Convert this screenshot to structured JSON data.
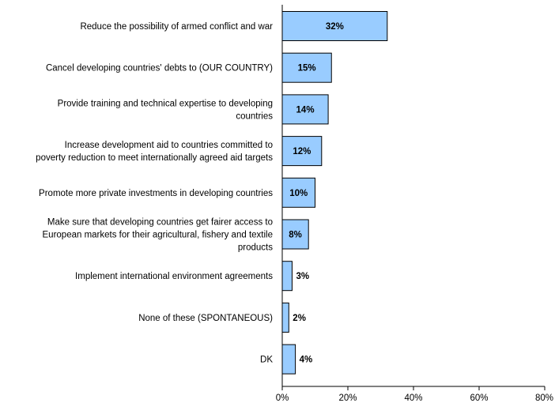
{
  "chart_data": {
    "type": "bar",
    "orientation": "horizontal",
    "categories": [
      "Reduce the possibility of armed conflict and war",
      "Cancel developing countries' debts to (OUR COUNTRY)",
      "Provide training and technical expertise to developing countries",
      "Increase development aid to countries committed to poverty reduction to meet internationally agreed aid targets",
      "Promote more private investments in developing countries",
      "Make sure that developing countries get fairer access to European markets for their agricultural, fishery and textile products",
      "Implement international environment agreements",
      "None of these (SPONTANEOUS)",
      "DK"
    ],
    "category_lines": [
      [
        "Reduce the possibility of armed conflict and war"
      ],
      [
        "Cancel developing countries' debts to (OUR COUNTRY)"
      ],
      [
        "Provide training and technical expertise to developing",
        "countries"
      ],
      [
        "Increase development aid to countries committed to",
        "poverty reduction to meet internationally agreed aid targets"
      ],
      [
        "Promote more private investments in developing countries"
      ],
      [
        "Make sure that developing countries get fairer access to",
        "European markets for their agricultural, fishery and textile",
        "products"
      ],
      [
        "Implement international environment agreements"
      ],
      [
        "None of these (SPONTANEOUS)"
      ],
      [
        "DK"
      ]
    ],
    "values": [
      32,
      15,
      14,
      12,
      10,
      8,
      3,
      2,
      4
    ],
    "value_labels": [
      "32%",
      "15%",
      "14%",
      "12%",
      "10%",
      "8%",
      "3%",
      "2%",
      "4%"
    ],
    "value_label_position": [
      "inside",
      "inside",
      "inside",
      "inside",
      "inside",
      "inside",
      "outside",
      "outside",
      "outside"
    ],
    "xlim": [
      0,
      80
    ],
    "xticks": [
      0,
      20,
      40,
      60,
      80
    ],
    "xtick_labels": [
      "0%",
      "20%",
      "40%",
      "60%",
      "80%"
    ],
    "title": "",
    "xlabel": "",
    "ylabel": "",
    "grid": false,
    "legend": "none",
    "bar_color": "#99ccff",
    "bar_edge_color": "#000000"
  }
}
